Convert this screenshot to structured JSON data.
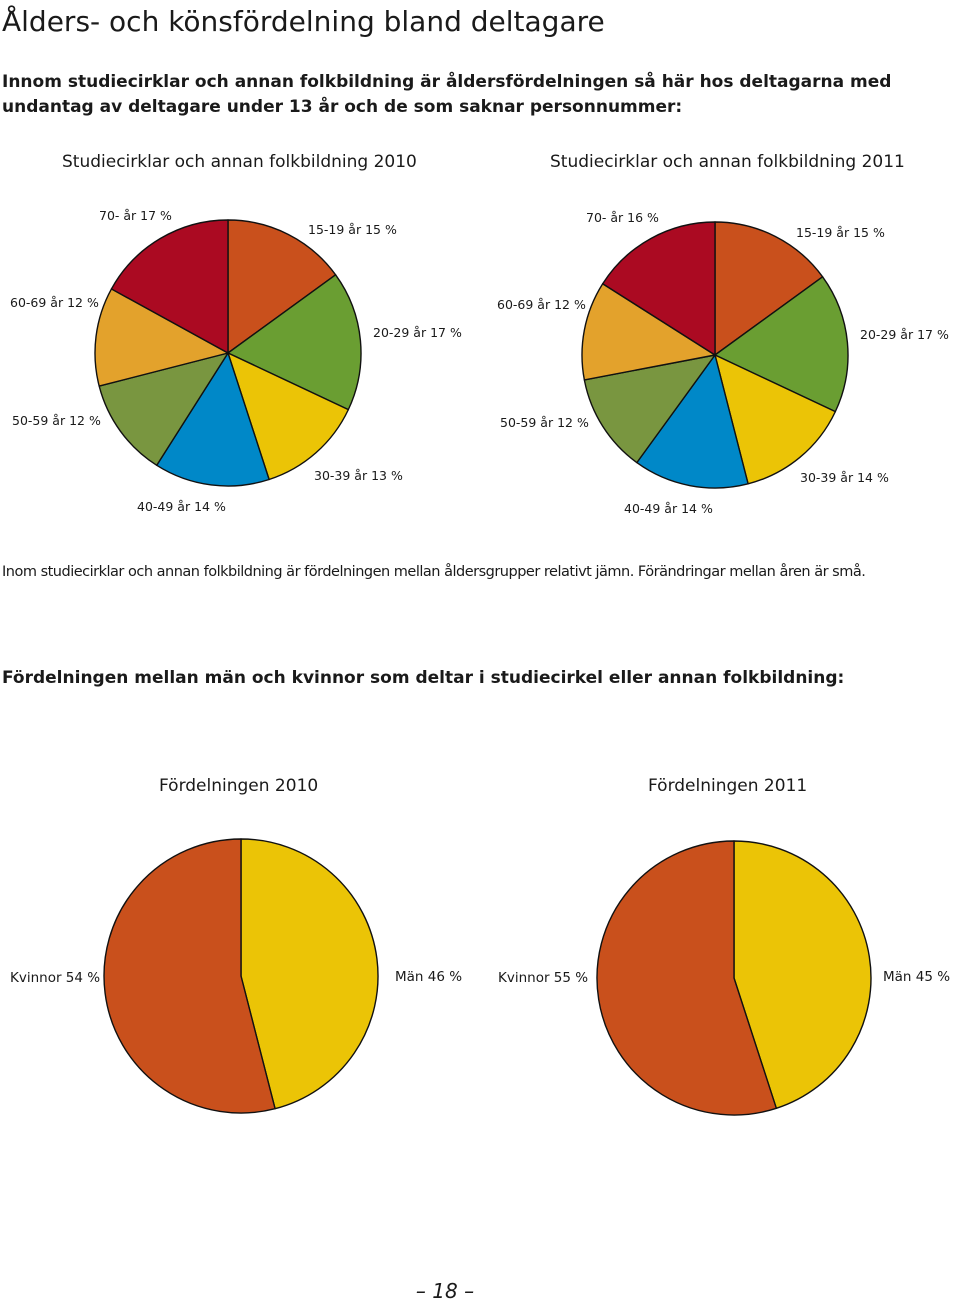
{
  "page": {
    "title": "Ålders- och könsfördelning bland deltagare",
    "intro": "Innom studiecirklar och annan folkbildning är åldersfördelningen så här hos deltagarna med undantag av deltagare under 13 år och de som saknar personnummer:",
    "caption": "Inom studiecirklar och annan folkbildning är fördelningen mellan åldersgrupper relativt jämn. Förändringar mellan åren är små.",
    "section_title": "Fördelningen mellan män och kvinnor som deltar i studiecirkel eller annan folkbildning:",
    "page_number": "– 18 –"
  },
  "chart_data": [
    {
      "type": "pie",
      "title": "Studiecirklar och annan folkbildning 2010",
      "slices": [
        {
          "label": "15-19 år 15 %",
          "value": 15,
          "color": "#c9501c"
        },
        {
          "label": "20-29 år 17 %",
          "value": 17,
          "color": "#6a9e32"
        },
        {
          "label": "30-39 år 13 %",
          "value": 13,
          "color": "#ebc406"
        },
        {
          "label": "40-49 år 14 %",
          "value": 14,
          "color": "#0088c8"
        },
        {
          "label": "50-59 år 12 %",
          "value": 12,
          "color": "#799640"
        },
        {
          "label": "60-69 år 12 %",
          "value": 12,
          "color": "#e3a22c"
        },
        {
          "label": "70- år 17 %",
          "value": 17,
          "color": "#ab0a22"
        }
      ]
    },
    {
      "type": "pie",
      "title": "Studiecirklar och annan folkbildning 2011",
      "slices": [
        {
          "label": "15-19 år 15 %",
          "value": 15,
          "color": "#c9501c"
        },
        {
          "label": "20-29 år 17 %",
          "value": 17,
          "color": "#6a9e32"
        },
        {
          "label": "30-39 år 14 %",
          "value": 14,
          "color": "#ebc406"
        },
        {
          "label": "40-49 år 14 %",
          "value": 14,
          "color": "#0088c8"
        },
        {
          "label": "50-59 år 12 %",
          "value": 12,
          "color": "#799640"
        },
        {
          "label": "60-69 år 12 %",
          "value": 12,
          "color": "#e3a22c"
        },
        {
          "label": "70- år 16 %",
          "value": 16,
          "color": "#ab0a22"
        }
      ]
    },
    {
      "type": "pie",
      "title": "Fördelningen 2010",
      "slices": [
        {
          "label": "Män 46 %",
          "value": 46,
          "color": "#ebc406"
        },
        {
          "label": "Kvinnor 54 %",
          "value": 54,
          "color": "#c9501c"
        }
      ]
    },
    {
      "type": "pie",
      "title": "Fördelningen 2011",
      "slices": [
        {
          "label": "Män 45 %",
          "value": 45,
          "color": "#ebc406"
        },
        {
          "label": "Kvinnor 55 %",
          "value": 55,
          "color": "#c9501c"
        }
      ]
    }
  ]
}
